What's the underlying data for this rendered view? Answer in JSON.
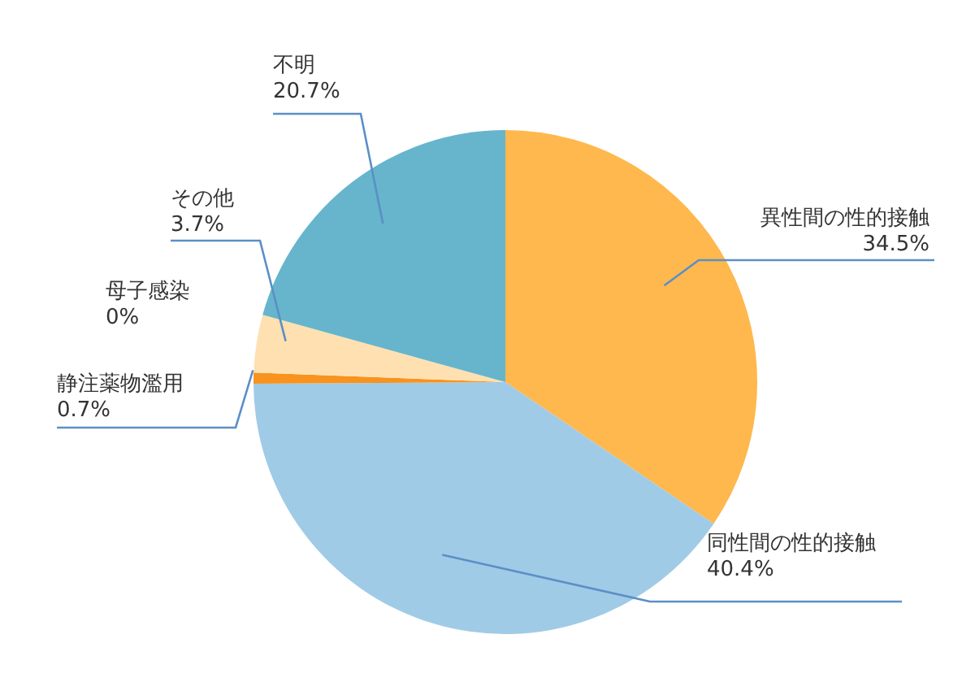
{
  "chart_data": {
    "type": "pie",
    "categories": [
      "異性間の性的接触",
      "同性間の性的接触",
      "静注薬物濫用",
      "母子感染",
      "その他",
      "不明"
    ],
    "values": [
      34.5,
      40.4,
      0.7,
      0,
      3.7,
      20.7
    ],
    "value_labels": [
      "34.5%",
      "40.4%",
      "0.7%",
      "0%",
      "3.7%",
      "20.7%"
    ],
    "colors": [
      "#ffb84d",
      "#a0cbe6",
      "#f7931e",
      "#ffe0b0",
      "#ffe0b0",
      "#66b5cc"
    ],
    "legend": false
  }
}
